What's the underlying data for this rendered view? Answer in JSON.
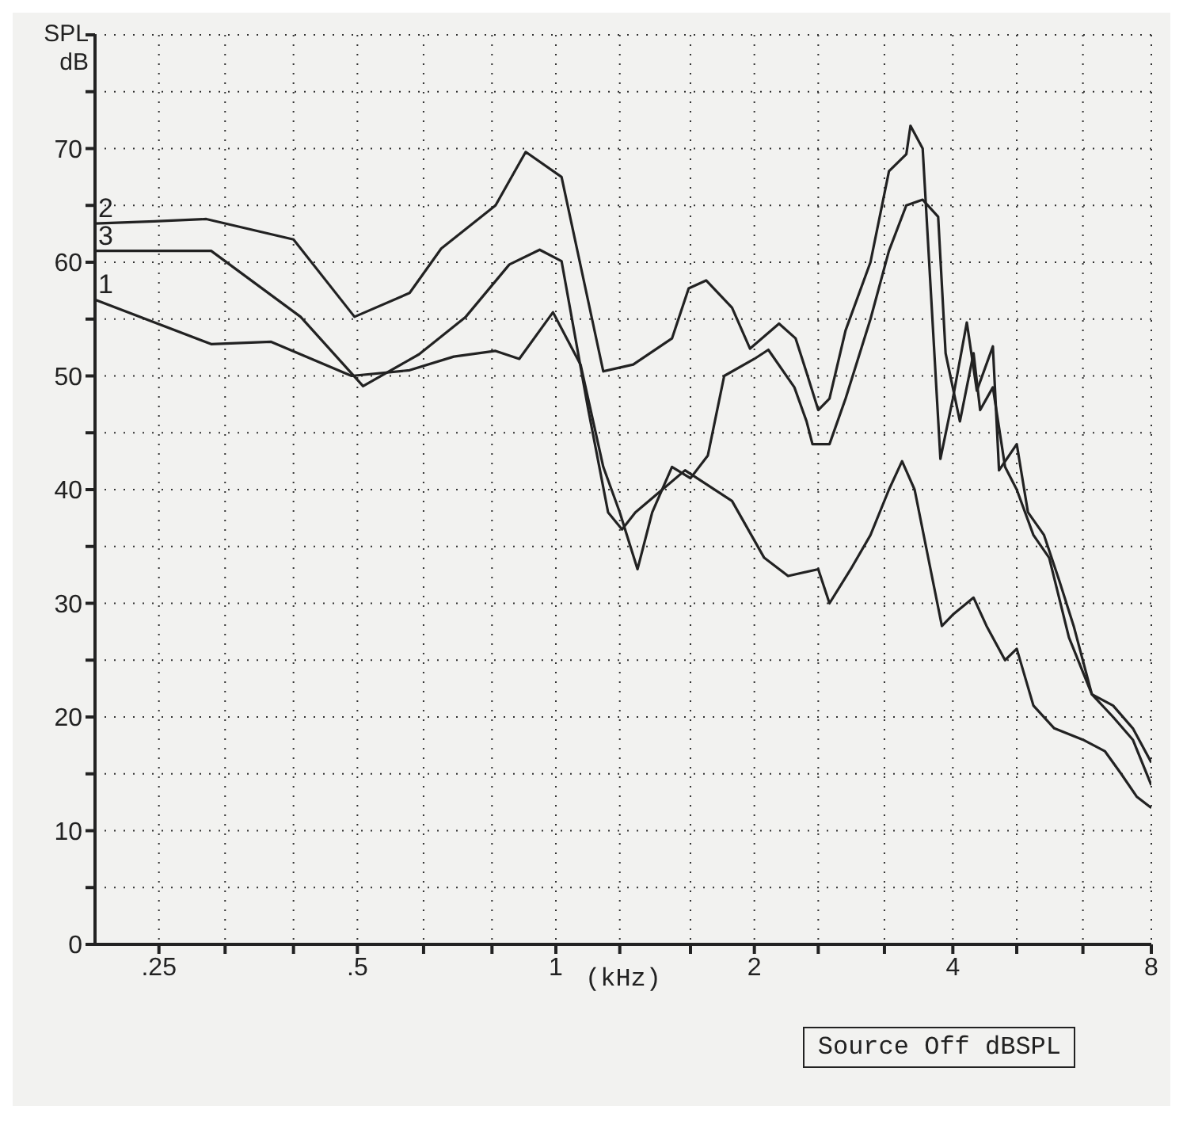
{
  "chart_data": {
    "type": "line",
    "ylabel": "SPL dB",
    "xlabel": "(kHz)",
    "log": "x",
    "xlim": [
      0.2,
      8
    ],
    "ylim": [
      0,
      80
    ],
    "xticks": [
      {
        "value": 0.25,
        "label": ".25"
      },
      {
        "value": 0.315,
        "label": null
      },
      {
        "value": 0.4,
        "label": null
      },
      {
        "value": 0.5,
        "label": ".5"
      },
      {
        "value": 0.63,
        "label": null
      },
      {
        "value": 0.8,
        "label": null
      },
      1,
      {
        "value": 1.25,
        "label": null
      },
      {
        "value": 1.6,
        "label": null
      },
      2,
      {
        "value": 2.5,
        "label": null
      },
      {
        "value": 3.15,
        "label": null
      },
      4,
      {
        "value": 5,
        "label": null
      },
      {
        "value": 6.3,
        "label": null
      },
      8
    ],
    "yticks": [
      0,
      {
        "value": 5,
        "label": null
      },
      10,
      {
        "value": 15,
        "label": null
      },
      20,
      {
        "value": 25,
        "label": null
      },
      30,
      {
        "value": 35,
        "label": null
      },
      40,
      {
        "value": 45,
        "label": null
      },
      50,
      {
        "value": 55,
        "label": null
      },
      60,
      {
        "value": 65,
        "label": null
      },
      70,
      {
        "value": 75,
        "label": null
      },
      {
        "value": 80,
        "label": null
      }
    ],
    "grid": true,
    "legend": false,
    "marker": "none",
    "line_style": "solid",
    "series": [
      {
        "name": "1",
        "color": "#222222",
        "x": [
          0.2,
          0.3,
          0.37,
          0.49,
          0.6,
          0.7,
          0.81,
          0.88,
          0.99,
          1.09,
          1.18,
          1.25,
          1.33,
          1.4,
          1.5,
          1.6,
          1.7,
          1.8,
          2.0,
          2.1,
          2.3,
          2.4,
          2.45,
          2.6,
          2.75,
          3.0,
          3.2,
          3.4,
          3.6,
          3.8,
          3.9,
          4.1,
          4.3,
          4.4,
          4.6,
          4.8,
          5.0,
          5.3,
          5.6,
          6.0,
          6.5,
          7.0,
          7.5,
          8
        ],
        "values": [
          56.7,
          52.8,
          53,
          50,
          50.5,
          51.7,
          52.2,
          51.5,
          55.6,
          51,
          42,
          38,
          33,
          38,
          42,
          41,
          43,
          50,
          51.5,
          52.3,
          49,
          46,
          44,
          44,
          48,
          55,
          61,
          65,
          65.5,
          64,
          52,
          46,
          52,
          47,
          49,
          42,
          40,
          36,
          34,
          27,
          22,
          20,
          18,
          14
        ]
      },
      {
        "name": "2",
        "color": "#222222",
        "x": [
          0.2,
          0.246,
          0.295,
          0.4,
          0.495,
          0.6,
          0.67,
          0.81,
          0.9,
          1.02,
          1.18,
          1.31,
          1.5,
          1.59,
          1.69,
          1.85,
          1.97,
          2.18,
          2.31,
          2.4,
          2.5,
          2.6,
          2.75,
          3.0,
          3.2,
          3.4,
          3.45,
          3.6,
          3.83,
          4.0,
          4.2,
          4.35,
          4.6,
          4.7,
          5.0,
          5.2,
          5.5,
          5.8,
          6.1,
          6.5,
          7.0,
          7.5,
          8
        ],
        "values": [
          63.4,
          63.6,
          63.8,
          62,
          55.2,
          57.3,
          61.2,
          65,
          69.7,
          67.5,
          50.4,
          51,
          53.3,
          57.7,
          58.4,
          56,
          52.4,
          54.6,
          53.3,
          50.3,
          47,
          48,
          54,
          60,
          68,
          69.5,
          72,
          70,
          42.7,
          48,
          54.7,
          48.7,
          52.6,
          41.7,
          44,
          38,
          36,
          32,
          28,
          22,
          21,
          19,
          16
        ]
      },
      {
        "name": "3",
        "color": "#222222",
        "x": [
          0.2,
          0.3,
          0.41,
          0.51,
          0.62,
          0.73,
          0.85,
          0.945,
          1.02,
          1.12,
          1.2,
          1.26,
          1.32,
          1.45,
          1.57,
          1.85,
          2.07,
          2.25,
          2.5,
          2.6,
          2.8,
          3.0,
          3.2,
          3.35,
          3.5,
          3.7,
          3.85,
          4.0,
          4.3,
          4.5,
          4.8,
          5.0,
          5.3,
          5.7,
          6.3,
          6.8,
          7.2,
          7.6,
          8
        ],
        "values": [
          61,
          61,
          55.2,
          49.1,
          51.9,
          55.2,
          59.8,
          61.1,
          60.1,
          47,
          38,
          36.5,
          38,
          40,
          41.7,
          39,
          34,
          32.4,
          33,
          30,
          33,
          36,
          40,
          42.5,
          40,
          33,
          28,
          29,
          30.5,
          28,
          25,
          26,
          21,
          19,
          18,
          17,
          15,
          13,
          12
        ]
      }
    ],
    "annotations": [
      "Source Off dBSPL"
    ]
  }
}
